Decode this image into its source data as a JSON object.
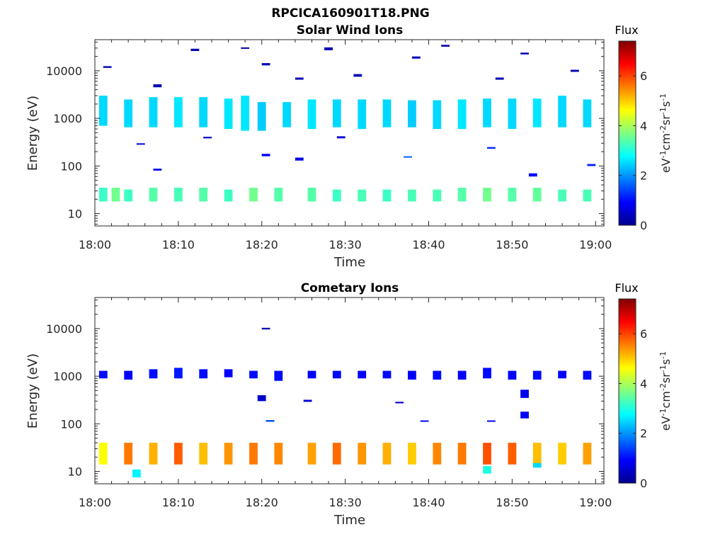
{
  "figure_title": "RPCICA160901T18.PNG",
  "colors": {
    "colormap": [
      "#00008f",
      "#0000ff",
      "#0080ff",
      "#00ffff",
      "#80ff80",
      "#ffff00",
      "#ff8000",
      "#ff0000",
      "#800000"
    ],
    "text": "#262626",
    "background": "#ffffff"
  },
  "chart_data": [
    {
      "type": "heatmap",
      "title": "Solar Wind Ions",
      "xlabel": "Time",
      "ylabel": "Energy (eV)",
      "yscale": "log",
      "ylim": [
        5.5,
        45000
      ],
      "xlim": [
        "18:00",
        "19:01"
      ],
      "xticks": [
        "18:00",
        "18:10",
        "18:20",
        "18:30",
        "18:40",
        "18:50",
        "19:00"
      ],
      "yticks": [
        "10",
        "100",
        "1000",
        "10000"
      ],
      "colorbar": {
        "label": "Flux",
        "unit": "eV-1cm-2sr-1s-1",
        "range": [
          0,
          7.4
        ],
        "ticks": [
          "0",
          "2",
          "4",
          "6"
        ]
      },
      "cells": [
        [
          0.5,
          1,
          700,
          3000,
          2.5
        ],
        [
          3.5,
          1,
          650,
          2500,
          2.5
        ],
        [
          6.5,
          1,
          650,
          2800,
          2.5
        ],
        [
          9.5,
          1,
          650,
          2800,
          2.6
        ],
        [
          12.5,
          1,
          650,
          2800,
          2.5
        ],
        [
          15.5,
          1,
          600,
          2600,
          2.6
        ],
        [
          17.5,
          1,
          550,
          3000,
          2.6
        ],
        [
          19.5,
          1,
          550,
          2200,
          2.4
        ],
        [
          22.5,
          1,
          650,
          2200,
          2.5
        ],
        [
          25.5,
          1,
          600,
          2500,
          2.6
        ],
        [
          28.5,
          1,
          650,
          2500,
          2.5
        ],
        [
          31.5,
          1,
          600,
          2500,
          2.5
        ],
        [
          34.5,
          1,
          650,
          2500,
          2.5
        ],
        [
          37.5,
          1,
          650,
          2400,
          2.4
        ],
        [
          40.5,
          1,
          600,
          2400,
          2.5
        ],
        [
          43.5,
          1,
          600,
          2500,
          2.6
        ],
        [
          46.5,
          1,
          650,
          2600,
          2.5
        ],
        [
          49.5,
          1,
          600,
          2600,
          2.5
        ],
        [
          52.5,
          1,
          650,
          2600,
          2.6
        ],
        [
          55.5,
          1,
          650,
          3000,
          2.5
        ],
        [
          58.5,
          1,
          650,
          2500,
          2.5
        ],
        [
          0.5,
          1,
          18,
          35,
          3.2
        ],
        [
          2,
          1,
          18,
          35,
          3.6
        ],
        [
          3.5,
          1,
          18,
          32,
          3.2
        ],
        [
          6.5,
          1,
          18,
          35,
          3.4
        ],
        [
          9.5,
          1,
          18,
          35,
          3.3
        ],
        [
          12.5,
          1,
          18,
          35,
          3.4
        ],
        [
          15.5,
          1,
          18,
          32,
          3.2
        ],
        [
          18.5,
          1,
          18,
          35,
          3.6
        ],
        [
          21.5,
          1,
          18,
          35,
          3.4
        ],
        [
          25.5,
          1,
          18,
          35,
          3.4
        ],
        [
          28.5,
          1,
          18,
          32,
          3.2
        ],
        [
          31.5,
          1,
          18,
          32,
          3.3
        ],
        [
          34.5,
          1,
          18,
          32,
          3.2
        ],
        [
          37.5,
          1,
          18,
          32,
          3.3
        ],
        [
          40.5,
          1,
          18,
          32,
          3.3
        ],
        [
          43.5,
          1,
          18,
          35,
          3.4
        ],
        [
          46.5,
          1,
          18,
          35,
          3.6
        ],
        [
          49.5,
          1,
          18,
          35,
          3.4
        ],
        [
          52.5,
          1,
          18,
          35,
          3.5
        ],
        [
          55.5,
          1,
          18,
          32,
          3.3
        ],
        [
          58.5,
          1,
          18,
          32,
          3.3
        ],
        [
          1,
          1,
          11500,
          12500,
          0.3
        ],
        [
          7,
          1,
          4500,
          5200,
          0.3
        ],
        [
          11.5,
          1,
          26000,
          29000,
          0.3
        ],
        [
          17.5,
          1,
          29000,
          31000,
          0.2
        ],
        [
          20,
          1,
          13000,
          14500,
          0.3
        ],
        [
          24,
          1,
          6500,
          7200,
          0.3
        ],
        [
          27.5,
          1,
          27000,
          31000,
          0.3
        ],
        [
          31,
          1,
          7500,
          8500,
          0.3
        ],
        [
          38,
          1,
          18000,
          20000,
          0.3
        ],
        [
          41.5,
          1,
          32000,
          35000,
          0.3
        ],
        [
          48,
          1,
          6500,
          7200,
          0.3
        ],
        [
          51,
          1,
          22000,
          24000,
          0.3
        ],
        [
          57,
          1,
          9500,
          10500,
          0.3
        ],
        [
          5,
          1,
          280,
          300,
          0.6
        ],
        [
          13,
          1,
          380,
          410,
          0.5
        ],
        [
          20,
          1,
          160,
          180,
          0.9
        ],
        [
          24,
          1,
          130,
          150,
          0.7
        ],
        [
          37,
          1,
          150,
          160,
          1.6
        ],
        [
          47,
          1,
          230,
          250,
          1.2
        ],
        [
          52,
          1,
          60,
          70,
          1.0
        ],
        [
          59,
          1,
          100,
          110,
          1.1
        ],
        [
          7,
          1,
          80,
          88,
          1.0
        ],
        [
          29,
          1,
          380,
          420,
          0.6
        ]
      ]
    },
    {
      "type": "heatmap",
      "title": "Cometary Ions",
      "xlabel": "Time",
      "ylabel": "Energy (eV)",
      "yscale": "log",
      "ylim": [
        5.5,
        45000
      ],
      "xlim": [
        "18:00",
        "19:01"
      ],
      "xticks": [
        "18:00",
        "18:10",
        "18:20",
        "18:30",
        "18:40",
        "18:50",
        "19:00"
      ],
      "yticks": [
        "10",
        "100",
        "1000",
        "10000"
      ],
      "colorbar": {
        "label": "Flux",
        "unit": "eV-1cm-2sr-1s-1",
        "range": [
          0,
          7.4
        ],
        "ticks": [
          "0",
          "2",
          "4",
          "6"
        ]
      },
      "cells": [
        [
          0.5,
          1,
          900,
          1300,
          1.0
        ],
        [
          3.5,
          1,
          850,
          1300,
          0.9
        ],
        [
          6.5,
          1,
          900,
          1400,
          1.0
        ],
        [
          9.5,
          1,
          900,
          1500,
          1.1
        ],
        [
          12.5,
          1,
          900,
          1400,
          1.0
        ],
        [
          15.5,
          1,
          950,
          1400,
          0.9
        ],
        [
          18.5,
          1,
          900,
          1300,
          1.0
        ],
        [
          21.5,
          1,
          800,
          1300,
          1.0
        ],
        [
          25.5,
          1,
          900,
          1300,
          0.9
        ],
        [
          28.5,
          1,
          900,
          1300,
          1.0
        ],
        [
          31.5,
          1,
          900,
          1300,
          0.9
        ],
        [
          34.5,
          1,
          900,
          1300,
          1.0
        ],
        [
          37.5,
          1,
          850,
          1300,
          0.9
        ],
        [
          40.5,
          1,
          850,
          1300,
          1.0
        ],
        [
          43.5,
          1,
          850,
          1300,
          0.9
        ],
        [
          46.5,
          1,
          900,
          1500,
          1.0
        ],
        [
          49.5,
          1,
          850,
          1300,
          0.9
        ],
        [
          52.5,
          1,
          850,
          1300,
          1.0
        ],
        [
          55.5,
          1,
          900,
          1300,
          0.9
        ],
        [
          58.5,
          1,
          850,
          1300,
          1.0
        ],
        [
          0.5,
          1,
          14,
          40,
          4.6
        ],
        [
          3.5,
          1,
          14,
          40,
          5.6
        ],
        [
          6.5,
          1,
          14,
          40,
          5.2
        ],
        [
          9.5,
          1,
          14,
          40,
          5.8
        ],
        [
          12.5,
          1,
          14,
          40,
          5.1
        ],
        [
          15.5,
          1,
          14,
          40,
          5.4
        ],
        [
          18.5,
          1,
          14,
          40,
          5.6
        ],
        [
          21.5,
          1,
          14,
          40,
          5.5
        ],
        [
          25.5,
          1,
          14,
          40,
          5.3
        ],
        [
          28.5,
          1,
          14,
          40,
          5.7
        ],
        [
          31.5,
          1,
          14,
          40,
          5.4
        ],
        [
          34.5,
          1,
          14,
          40,
          5.2
        ],
        [
          37.5,
          1,
          14,
          40,
          5.0
        ],
        [
          40.5,
          1,
          14,
          40,
          5.5
        ],
        [
          43.5,
          1,
          14,
          40,
          5.6
        ],
        [
          46.5,
          1,
          14,
          40,
          5.9
        ],
        [
          49.5,
          1,
          14,
          40,
          5.8
        ],
        [
          52.5,
          1,
          14,
          40,
          5.1
        ],
        [
          55.5,
          1,
          14,
          40,
          5.0
        ],
        [
          58.5,
          1,
          14,
          40,
          5.3
        ],
        [
          4.5,
          1,
          7.5,
          11,
          2.7
        ],
        [
          46.5,
          1,
          9,
          13,
          3.0
        ],
        [
          52.5,
          1,
          12,
          15,
          2.5
        ],
        [
          20,
          1,
          9600,
          10400,
          0.2
        ],
        [
          19.5,
          1,
          300,
          400,
          0.5
        ],
        [
          20.5,
          1,
          110,
          120,
          1.5
        ],
        [
          25,
          1,
          290,
          320,
          0.6
        ],
        [
          51,
          1,
          350,
          520,
          0.8
        ],
        [
          51,
          1,
          130,
          180,
          0.9
        ],
        [
          39,
          1,
          110,
          118,
          0.9
        ],
        [
          47,
          1,
          110,
          118,
          0.8
        ],
        [
          36,
          1,
          270,
          290,
          0.5
        ]
      ]
    }
  ]
}
